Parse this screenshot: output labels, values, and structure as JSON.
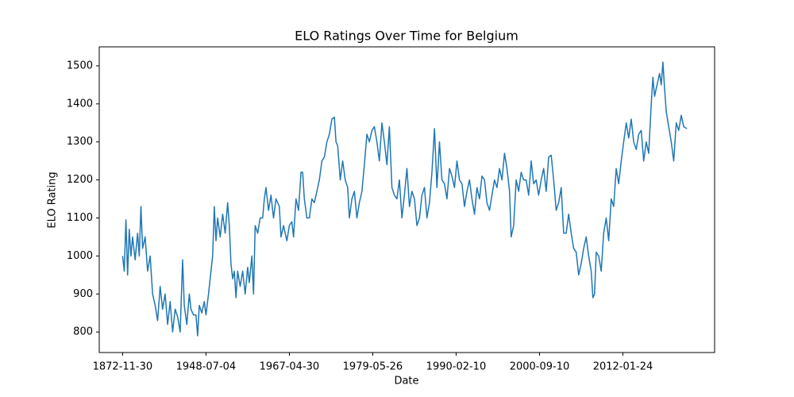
{
  "chart_data": {
    "type": "line",
    "title": "ELO Ratings Over Time for Belgium",
    "x_label": "Date",
    "y_label": "ELO Rating",
    "xlim": [
      -28,
      710
    ],
    "ylim": [
      746,
      1550
    ],
    "xticks": [
      {
        "value": 0,
        "label": "1872-11-30"
      },
      {
        "value": 100,
        "label": "1948-07-04"
      },
      {
        "value": 200,
        "label": "1967-04-30"
      },
      {
        "value": 300,
        "label": "1979-05-26"
      },
      {
        "value": 400,
        "label": "1990-02-10"
      },
      {
        "value": 500,
        "label": "2000-09-10"
      },
      {
        "value": 600,
        "label": "2012-01-24"
      }
    ],
    "yticks": [
      800,
      900,
      1000,
      1100,
      1200,
      1300,
      1400,
      1500
    ],
    "series": [
      {
        "name": "Belgium",
        "color": "#1f77b4",
        "x": [
          0,
          2,
          4,
          6,
          8,
          10,
          12,
          15,
          18,
          20,
          22,
          24,
          27,
          30,
          33,
          36,
          39,
          42,
          45,
          48,
          51,
          54,
          57,
          60,
          63,
          66,
          69,
          72,
          74,
          77,
          80,
          82,
          85,
          88,
          90,
          92,
          95,
          98,
          100,
          103,
          106,
          108,
          110,
          112,
          114,
          117,
          120,
          123,
          126,
          128,
          130,
          132,
          134,
          136,
          138,
          141,
          144,
          147,
          150,
          152,
          155,
          157,
          159,
          162,
          165,
          168,
          170,
          172,
          175,
          178,
          181,
          184,
          188,
          190,
          193,
          197,
          200,
          203,
          205,
          208,
          211,
          214,
          216,
          218,
          221,
          224,
          227,
          230,
          233,
          236,
          239,
          242,
          245,
          248,
          251,
          254,
          256,
          258,
          261,
          264,
          267,
          270,
          272,
          275,
          278,
          281,
          284,
          287,
          290,
          293,
          296,
          299,
          302,
          305,
          308,
          311,
          314,
          317,
          320,
          323,
          326,
          329,
          332,
          335,
          338,
          341,
          344,
          347,
          350,
          353,
          356,
          359,
          362,
          365,
          368,
          371,
          374,
          377,
          380,
          383,
          386,
          389,
          392,
          395,
          398,
          401,
          404,
          407,
          410,
          413,
          416,
          419,
          422,
          425,
          428,
          431,
          434,
          437,
          440,
          443,
          446,
          449,
          452,
          455,
          458,
          461,
          464,
          466,
          469,
          472,
          475,
          478,
          481,
          484,
          487,
          490,
          493,
          496,
          499,
          502,
          505,
          508,
          511,
          514,
          517,
          520,
          523,
          526,
          529,
          532,
          535,
          538,
          541,
          544,
          547,
          550,
          553,
          556,
          559,
          562,
          564,
          566,
          568,
          571,
          574,
          577,
          580,
          583,
          586,
          589,
          592,
          595,
          598,
          601,
          604,
          607,
          610,
          613,
          616,
          619,
          622,
          625,
          628,
          631,
          634,
          636,
          638,
          641,
          644,
          646,
          648,
          650,
          652,
          655,
          658,
          661,
          664,
          667,
          670,
          673,
          677
        ],
        "values": [
          1000,
          960,
          1095,
          950,
          1070,
          1000,
          1050,
          990,
          1060,
          1000,
          1130,
          1020,
          1050,
          960,
          1000,
          900,
          870,
          830,
          920,
          860,
          900,
          820,
          880,
          800,
          860,
          840,
          800,
          990,
          870,
          820,
          900,
          860,
          845,
          845,
          790,
          870,
          850,
          880,
          845,
          900,
          960,
          1000,
          1130,
          1040,
          1100,
          1050,
          1110,
          1060,
          1140,
          1080,
          980,
          940,
          960,
          890,
          960,
          920,
          960,
          900,
          970,
          930,
          1000,
          900,
          1080,
          1060,
          1100,
          1100,
          1150,
          1180,
          1120,
          1160,
          1100,
          1150,
          1130,
          1050,
          1080,
          1040,
          1080,
          1090,
          1050,
          1150,
          1120,
          1220,
          1220,
          1150,
          1100,
          1100,
          1150,
          1140,
          1170,
          1200,
          1250,
          1260,
          1300,
          1320,
          1360,
          1365,
          1300,
          1290,
          1200,
          1250,
          1200,
          1180,
          1100,
          1150,
          1170,
          1100,
          1140,
          1170,
          1240,
          1320,
          1300,
          1330,
          1340,
          1300,
          1250,
          1350,
          1300,
          1240,
          1340,
          1180,
          1160,
          1150,
          1200,
          1100,
          1160,
          1230,
          1130,
          1170,
          1150,
          1080,
          1100,
          1160,
          1180,
          1100,
          1140,
          1220,
          1335,
          1180,
          1300,
          1200,
          1190,
          1150,
          1230,
          1210,
          1180,
          1250,
          1200,
          1190,
          1130,
          1170,
          1200,
          1150,
          1110,
          1180,
          1150,
          1210,
          1200,
          1140,
          1120,
          1160,
          1200,
          1180,
          1230,
          1200,
          1270,
          1230,
          1170,
          1050,
          1080,
          1200,
          1170,
          1220,
          1200,
          1200,
          1160,
          1250,
          1190,
          1200,
          1160,
          1200,
          1230,
          1170,
          1260,
          1265,
          1200,
          1120,
          1140,
          1180,
          1060,
          1060,
          1110,
          1060,
          1020,
          1010,
          950,
          980,
          1020,
          1050,
          1000,
          960,
          890,
          900,
          1010,
          1000,
          960,
          1060,
          1100,
          1040,
          1150,
          1130,
          1230,
          1190,
          1250,
          1300,
          1350,
          1310,
          1360,
          1300,
          1280,
          1320,
          1330,
          1250,
          1300,
          1270,
          1400,
          1470,
          1420,
          1450,
          1480,
          1450,
          1510,
          1440,
          1380,
          1340,
          1300,
          1250,
          1350,
          1330,
          1370,
          1340,
          1335
        ]
      }
    ]
  }
}
